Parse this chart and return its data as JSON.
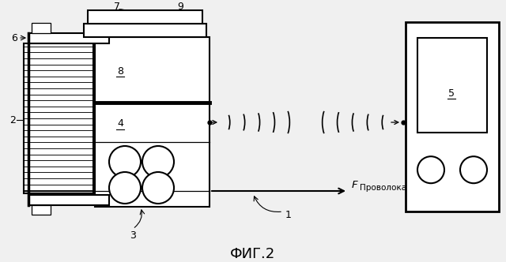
{
  "bg_color": "#f0f0f0",
  "fig_label": "ФИГ.2",
  "fig_label_fontsize": 13,
  "lw": 1.5,
  "thin_lw": 0.9,
  "label_fontsize": 9,
  "F_subscript": "Проволока",
  "underlined_labels": [
    "4",
    "5",
    "8"
  ]
}
